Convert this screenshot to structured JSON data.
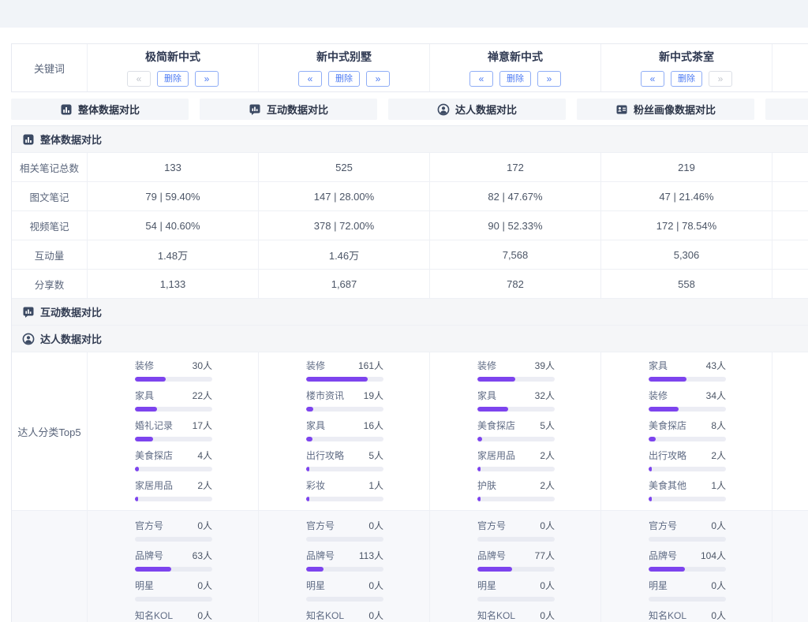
{
  "keyword_table": {
    "label": "关键词",
    "delete_label": "删除",
    "prev_glyph": "«",
    "next_glyph": "»",
    "columns": [
      {
        "title": "极简新中式",
        "prev_disabled": true,
        "next_disabled": false
      },
      {
        "title": "新中式别墅",
        "prev_disabled": false,
        "next_disabled": false
      },
      {
        "title": "禅意新中式",
        "prev_disabled": false,
        "next_disabled": false
      },
      {
        "title": "新中式茶室",
        "prev_disabled": false,
        "next_disabled": true
      }
    ]
  },
  "tabs": [
    {
      "label": "整体数据对比",
      "icon": "bar-chart"
    },
    {
      "label": "互动数据对比",
      "icon": "bubble-chart"
    },
    {
      "label": "达人数据对比",
      "icon": "person-circle"
    },
    {
      "label": "粉丝画像数据对比",
      "icon": "id-card"
    },
    {
      "label": "",
      "icon": ""
    }
  ],
  "sections": {
    "overall": {
      "title": "整体数据对比",
      "icon": "bar-chart",
      "rows": [
        {
          "label": "相关笔记总数",
          "values": [
            "133",
            "525",
            "172",
            "219"
          ]
        },
        {
          "label": "图文笔记",
          "values": [
            "79 | 59.40%",
            "147 | 28.00%",
            "82 | 47.67%",
            "47 | 21.46%"
          ]
        },
        {
          "label": "视频笔记",
          "values": [
            "54 | 40.60%",
            "378 | 72.00%",
            "90 | 52.33%",
            "172 | 78.54%"
          ]
        },
        {
          "label": "互动量",
          "values": [
            "1.48万",
            "1.46万",
            "7,568",
            "5,306"
          ]
        },
        {
          "label": "分享数",
          "values": [
            "1,133",
            "1,687",
            "782",
            "558"
          ]
        }
      ]
    },
    "interaction": {
      "title": "互动数据对比",
      "icon": "bubble-chart"
    },
    "expert": {
      "title": "达人数据对比",
      "icon": "person-circle",
      "top5_row_label": "达人分类Top5",
      "top5": [
        [
          {
            "label": "装修",
            "value": "30人",
            "pct": 40
          },
          {
            "label": "家具",
            "value": "22人",
            "pct": 29
          },
          {
            "label": "婚礼记录",
            "value": "17人",
            "pct": 23
          },
          {
            "label": "美食探店",
            "value": "4人",
            "pct": 5
          },
          {
            "label": "家居用品",
            "value": "2人",
            "pct": 3
          }
        ],
        [
          {
            "label": "装修",
            "value": "161人",
            "pct": 80
          },
          {
            "label": "楼市资讯",
            "value": "19人",
            "pct": 9
          },
          {
            "label": "家具",
            "value": "16人",
            "pct": 8
          },
          {
            "label": "出行攻略",
            "value": "5人",
            "pct": 2.5
          },
          {
            "label": "彩妆",
            "value": "1人",
            "pct": 1
          }
        ],
        [
          {
            "label": "装修",
            "value": "39人",
            "pct": 49
          },
          {
            "label": "家具",
            "value": "32人",
            "pct": 40
          },
          {
            "label": "美食探店",
            "value": "5人",
            "pct": 6
          },
          {
            "label": "家居用品",
            "value": "2人",
            "pct": 2.5
          },
          {
            "label": "护肤",
            "value": "2人",
            "pct": 2.5
          }
        ],
        [
          {
            "label": "家具",
            "value": "43人",
            "pct": 49
          },
          {
            "label": "装修",
            "value": "34人",
            "pct": 39
          },
          {
            "label": "美食探店",
            "value": "8人",
            "pct": 9
          },
          {
            "label": "出行攻略",
            "value": "2人",
            "pct": 2.5
          },
          {
            "label": "美食其他",
            "value": "1人",
            "pct": 1
          }
        ]
      ],
      "types": [
        [
          {
            "label": "官方号",
            "value": "0人",
            "pct": 0
          },
          {
            "label": "品牌号",
            "value": "63人",
            "pct": 47
          },
          {
            "label": "明星",
            "value": "0人",
            "pct": 0
          },
          {
            "label": "知名KOL",
            "value": "0人",
            "pct": 0
          }
        ],
        [
          {
            "label": "官方号",
            "value": "0人",
            "pct": 0
          },
          {
            "label": "品牌号",
            "value": "113人",
            "pct": 22
          },
          {
            "label": "明星",
            "value": "0人",
            "pct": 0
          },
          {
            "label": "知名KOL",
            "value": "0人",
            "pct": 0
          }
        ],
        [
          {
            "label": "官方号",
            "value": "0人",
            "pct": 0
          },
          {
            "label": "品牌号",
            "value": "77人",
            "pct": 45
          },
          {
            "label": "明星",
            "value": "0人",
            "pct": 0
          },
          {
            "label": "知名KOL",
            "value": "0人",
            "pct": 0
          }
        ],
        [
          {
            "label": "官方号",
            "value": "0人",
            "pct": 0
          },
          {
            "label": "品牌号",
            "value": "104人",
            "pct": 47
          },
          {
            "label": "明星",
            "value": "0人",
            "pct": 0
          },
          {
            "label": "知名KOL",
            "value": "0人",
            "pct": 0
          }
        ]
      ]
    }
  },
  "colors": {
    "accent_blue": "#4d7bf3",
    "bar_purple": "#7d44ee",
    "bar_track": "#ecedf4",
    "band_bg": "#f5f6f8",
    "topbar_bg": "#f1f4f8"
  }
}
